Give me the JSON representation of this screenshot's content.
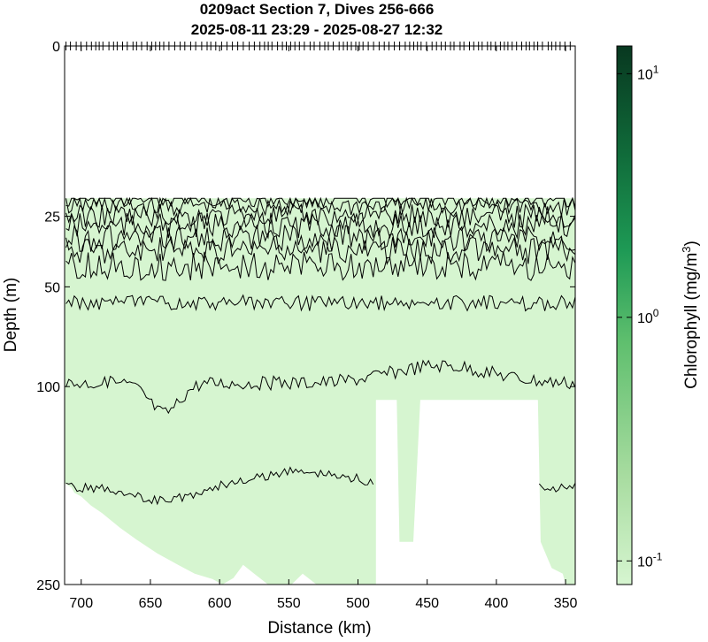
{
  "chart_data": {
    "type": "heatmap",
    "title": "0209act Section 7, Dives 256-666",
    "subtitle": "2025-08-11 23:29 - 2025-08-27 12:32",
    "xlabel": "Distance (km)",
    "ylabel": "Depth (m)",
    "xlim": [
      712,
      343
    ],
    "x_reversed": true,
    "xticks": [
      700,
      650,
      600,
      550,
      500,
      450,
      400,
      350
    ],
    "xtick_labels": [
      "700",
      "650",
      "600",
      "550",
      "500",
      "450",
      "400",
      "350"
    ],
    "y_scale": "sqrt",
    "ylim": [
      0,
      250
    ],
    "yticks": [
      0,
      25,
      50,
      100,
      250
    ],
    "ytick_labels": [
      "0",
      "25",
      "50",
      "100",
      "250"
    ],
    "colorbar": {
      "label": "Chlorophyll (mg/m³)",
      "label_base": "Chlorophyll (mg/m",
      "label_sup": "3",
      "label_close": ")",
      "scale": "log",
      "range": [
        0.08,
        13
      ],
      "ticks": [
        0.1,
        1,
        10
      ],
      "tick_bases": [
        "10",
        "10",
        "10"
      ],
      "tick_exponents": [
        "-1",
        "0",
        "1"
      ],
      "colors": [
        "#d6f5d0",
        "#a8dca0",
        "#5fbf6e",
        "#1e9a55",
        "#106b3a",
        "#083820"
      ]
    },
    "field": {
      "dominant_value_mg_m3": 0.1,
      "fill_color": "#d6f5d0",
      "data_top_depth_m": 20
    },
    "contour_depths_m": [
      20,
      22,
      25,
      28,
      32,
      36,
      42,
      57,
      98,
      168
    ],
    "bottom_mask_color": "#ffffff"
  }
}
